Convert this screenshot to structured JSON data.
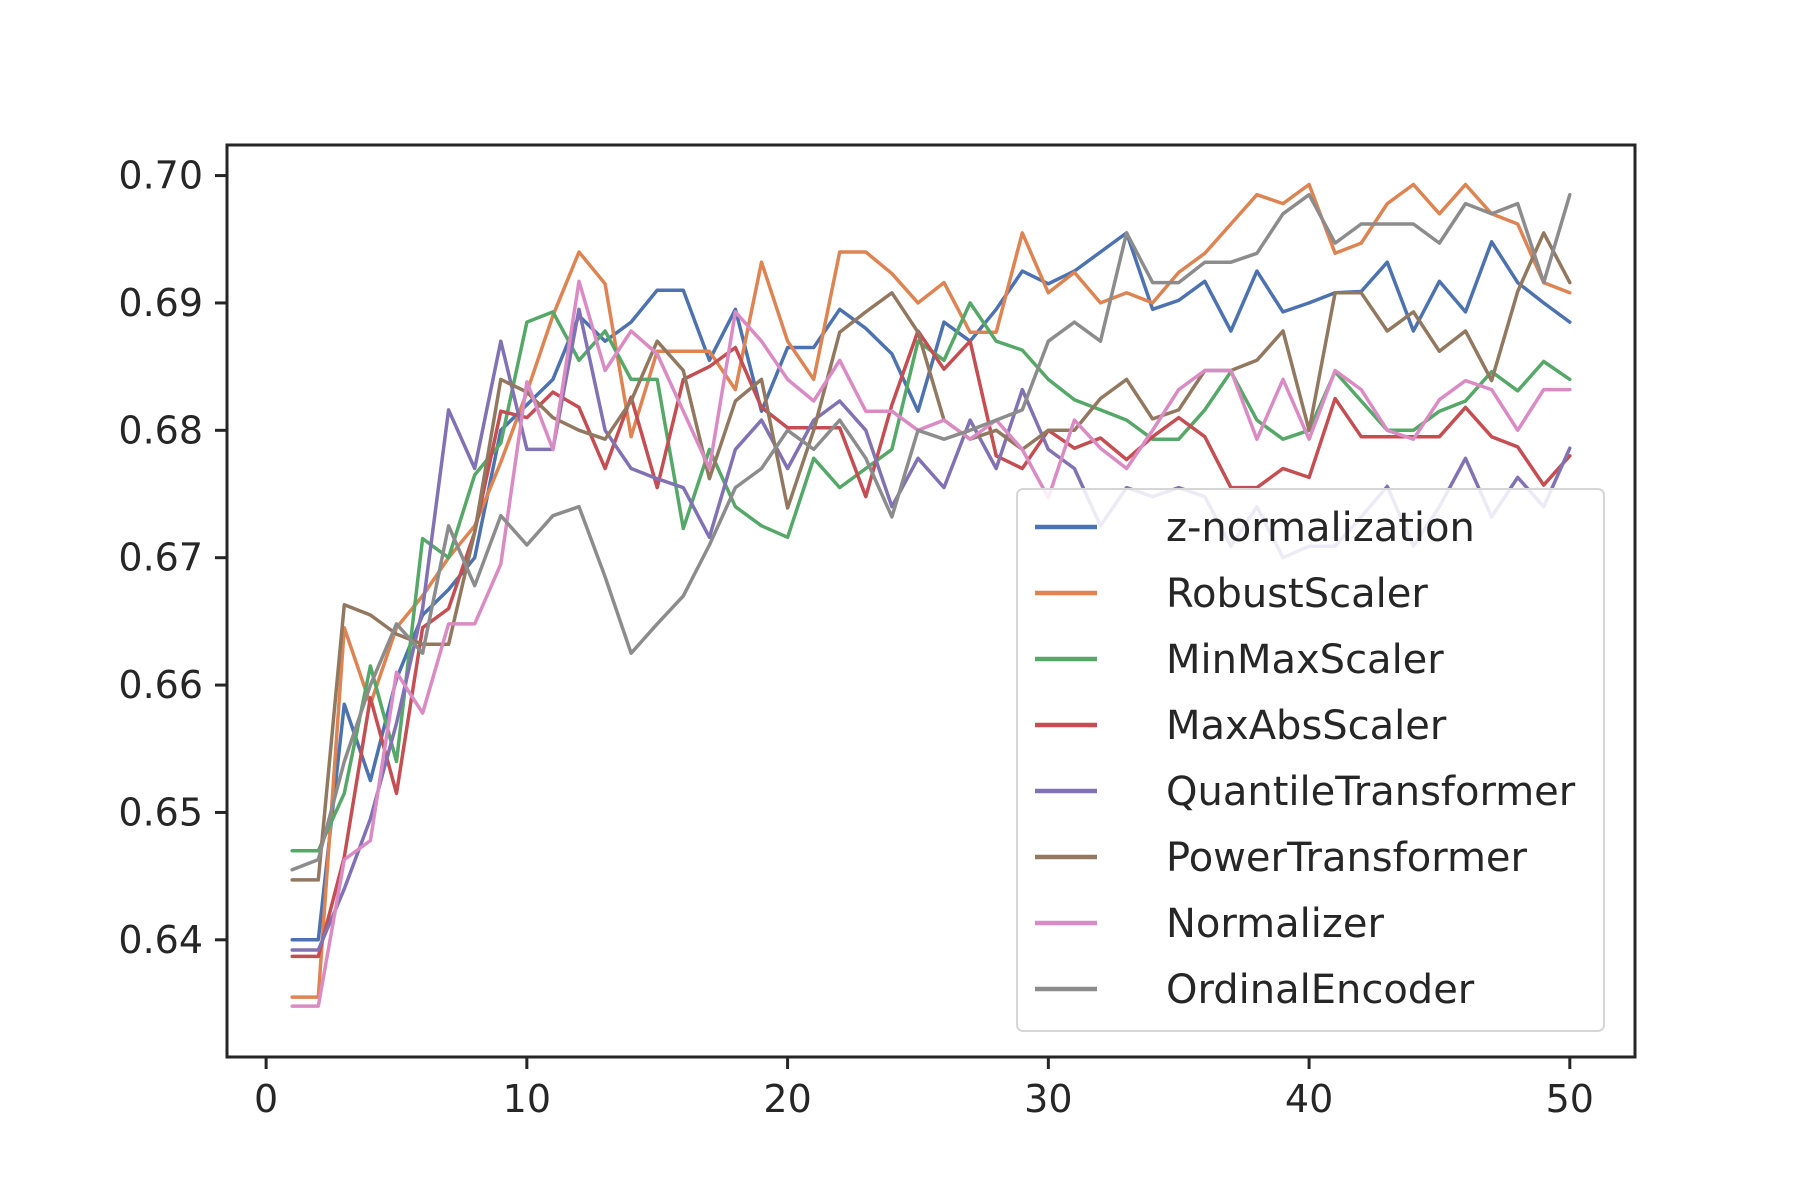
{
  "chart_data": {
    "type": "line",
    "title": "",
    "xlabel": "",
    "ylabel": "",
    "xlim": [
      -1.5,
      52.5
    ],
    "ylim": [
      0.6308,
      0.7024
    ],
    "x_ticks": [
      0,
      10,
      20,
      30,
      40,
      50
    ],
    "y_ticks": [
      0.64,
      0.65,
      0.66,
      0.67,
      0.68,
      0.69,
      0.7
    ],
    "x_tick_labels": [
      "0",
      "10",
      "20",
      "30",
      "40",
      "50"
    ],
    "y_tick_labels": [
      "0.64",
      "0.65",
      "0.66",
      "0.67",
      "0.68",
      "0.69",
      "0.70"
    ],
    "grid": false,
    "legend_position": "lower-right",
    "x": [
      1,
      2,
      3,
      4,
      5,
      6,
      7,
      8,
      9,
      10,
      11,
      12,
      13,
      14,
      15,
      16,
      17,
      18,
      19,
      20,
      21,
      22,
      23,
      24,
      25,
      26,
      27,
      28,
      29,
      30,
      31,
      32,
      33,
      34,
      35,
      36,
      37,
      38,
      39,
      40,
      41,
      42,
      43,
      44,
      45,
      46,
      47,
      48,
      49,
      50
    ],
    "series": [
      {
        "name": "z-normalization",
        "color": "#4c72b0",
        "values": [
          0.64,
          0.64,
          0.6585,
          0.6525,
          0.6605,
          0.6655,
          0.6675,
          0.67,
          0.68,
          0.682,
          0.684,
          0.689,
          0.687,
          0.6885,
          0.691,
          0.691,
          0.6855,
          0.6895,
          0.6815,
          0.6865,
          0.6865,
          0.6895,
          0.688,
          0.686,
          0.6815,
          0.6885,
          0.687,
          0.6895,
          0.6925,
          0.6915,
          0.6925,
          0.694,
          0.6955,
          0.6895,
          0.6902,
          0.6917,
          0.6878,
          0.6925,
          0.6893,
          0.69,
          0.6908,
          0.6909,
          0.6932,
          0.6878,
          0.6917,
          0.6893,
          0.6948,
          0.6916,
          0.69,
          0.6885
        ]
      },
      {
        "name": "RobustScaler",
        "color": "#dd8452",
        "values": [
          0.6355,
          0.6355,
          0.6645,
          0.6585,
          0.6645,
          0.667,
          0.67,
          0.6725,
          0.6775,
          0.683,
          0.689,
          0.694,
          0.6915,
          0.6795,
          0.6862,
          0.6862,
          0.6862,
          0.6832,
          0.6932,
          0.687,
          0.684,
          0.694,
          0.694,
          0.6923,
          0.69,
          0.6916,
          0.6877,
          0.6877,
          0.6955,
          0.6908,
          0.6924,
          0.69,
          0.6908,
          0.69,
          0.6924,
          0.6939,
          0.6962,
          0.6985,
          0.6978,
          0.6993,
          0.6939,
          0.6947,
          0.6978,
          0.6993,
          0.697,
          0.6993,
          0.697,
          0.6962,
          0.6916,
          0.6908
        ]
      },
      {
        "name": "MinMaxScaler",
        "color": "#55a868",
        "values": [
          0.647,
          0.647,
          0.6515,
          0.6615,
          0.654,
          0.6715,
          0.67,
          0.6765,
          0.679,
          0.6885,
          0.6893,
          0.6855,
          0.6878,
          0.684,
          0.684,
          0.6723,
          0.6785,
          0.674,
          0.6725,
          0.6716,
          0.6778,
          0.6755,
          0.677,
          0.6785,
          0.687,
          0.6855,
          0.69,
          0.687,
          0.6863,
          0.684,
          0.6824,
          0.6816,
          0.6808,
          0.6793,
          0.6793,
          0.6816,
          0.6846,
          0.6808,
          0.6793,
          0.68,
          0.6846,
          0.6823,
          0.68,
          0.68,
          0.6815,
          0.6823,
          0.6846,
          0.6831,
          0.6854,
          0.684
        ]
      },
      {
        "name": "MaxAbsScaler",
        "color": "#c44e52",
        "values": [
          0.6387,
          0.6387,
          0.6465,
          0.659,
          0.6515,
          0.6645,
          0.666,
          0.672,
          0.6815,
          0.681,
          0.683,
          0.6818,
          0.677,
          0.6826,
          0.6755,
          0.684,
          0.685,
          0.6865,
          0.6818,
          0.6802,
          0.6802,
          0.6802,
          0.6748,
          0.682,
          0.6878,
          0.6848,
          0.687,
          0.678,
          0.677,
          0.68,
          0.6786,
          0.6794,
          0.6777,
          0.6795,
          0.681,
          0.6795,
          0.6755,
          0.6755,
          0.677,
          0.6763,
          0.6825,
          0.6795,
          0.6795,
          0.6795,
          0.6795,
          0.6818,
          0.6795,
          0.6787,
          0.6757,
          0.678
        ]
      },
      {
        "name": "QuantileTransformer",
        "color": "#8172b3",
        "values": [
          0.6392,
          0.6392,
          0.644,
          0.6495,
          0.657,
          0.666,
          0.6816,
          0.677,
          0.687,
          0.6785,
          0.6785,
          0.6895,
          0.68,
          0.677,
          0.6762,
          0.6755,
          0.6716,
          0.6785,
          0.6808,
          0.677,
          0.6808,
          0.6823,
          0.68,
          0.674,
          0.6778,
          0.6755,
          0.6808,
          0.677,
          0.6832,
          0.6785,
          0.677,
          0.6725,
          0.6755,
          0.6748,
          0.6755,
          0.6748,
          0.6709,
          0.674,
          0.67,
          0.6709,
          0.6709,
          0.6732,
          0.6756,
          0.6709,
          0.674,
          0.6778,
          0.6732,
          0.6763,
          0.674,
          0.6786
        ]
      },
      {
        "name": "PowerTransformer",
        "color": "#937860",
        "values": [
          0.6447,
          0.6447,
          0.6663,
          0.6655,
          0.664,
          0.6632,
          0.6632,
          0.672,
          0.684,
          0.683,
          0.681,
          0.68,
          0.6793,
          0.6823,
          0.687,
          0.6847,
          0.6762,
          0.6823,
          0.684,
          0.6739,
          0.68,
          0.6877,
          0.6893,
          0.6908,
          0.6877,
          0.6808,
          0.6793,
          0.68,
          0.6785,
          0.68,
          0.68,
          0.6825,
          0.684,
          0.6809,
          0.6816,
          0.6847,
          0.6847,
          0.6855,
          0.6878,
          0.68,
          0.6908,
          0.6908,
          0.6878,
          0.6893,
          0.6862,
          0.6878,
          0.6839,
          0.6909,
          0.6955,
          0.6916
        ]
      },
      {
        "name": "Normalizer",
        "color": "#da8bc3",
        "values": [
          0.6348,
          0.6348,
          0.6463,
          0.6478,
          0.661,
          0.6578,
          0.6648,
          0.6648,
          0.6695,
          0.6838,
          0.6785,
          0.6917,
          0.6847,
          0.6878,
          0.686,
          0.6815,
          0.677,
          0.6893,
          0.687,
          0.684,
          0.6823,
          0.6855,
          0.6815,
          0.6815,
          0.68,
          0.6808,
          0.6793,
          0.6808,
          0.6785,
          0.6747,
          0.6808,
          0.6786,
          0.677,
          0.68,
          0.6832,
          0.6847,
          0.6847,
          0.6793,
          0.684,
          0.6793,
          0.6847,
          0.6832,
          0.68,
          0.6793,
          0.6824,
          0.6839,
          0.6832,
          0.68,
          0.6832,
          0.6832
        ]
      },
      {
        "name": "OrdinalEncoder",
        "color": "#8c8c8c",
        "values": [
          0.6455,
          0.6463,
          0.654,
          0.66,
          0.6648,
          0.6625,
          0.6725,
          0.6678,
          0.6733,
          0.671,
          0.6733,
          0.674,
          0.6685,
          0.6625,
          0.6648,
          0.667,
          0.671,
          0.6755,
          0.677,
          0.68,
          0.6785,
          0.6808,
          0.6778,
          0.6732,
          0.68,
          0.6793,
          0.68,
          0.6808,
          0.6816,
          0.687,
          0.6885,
          0.687,
          0.6955,
          0.6916,
          0.6916,
          0.6932,
          0.6932,
          0.6939,
          0.697,
          0.6985,
          0.6947,
          0.6962,
          0.6962,
          0.6962,
          0.6947,
          0.6978,
          0.697,
          0.6978,
          0.6916,
          0.6985
        ]
      }
    ]
  }
}
